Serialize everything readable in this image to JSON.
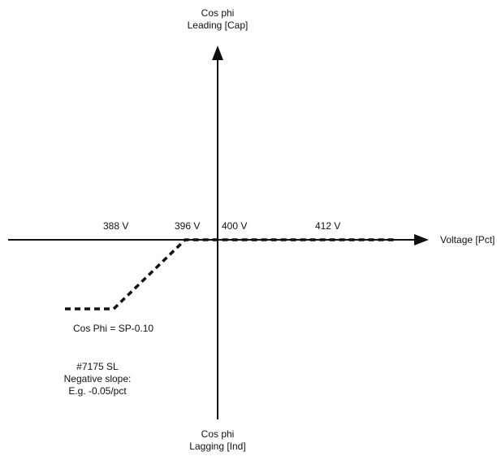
{
  "axes": {
    "y_top_label_line1": "Cos phi",
    "y_top_label_line2": "Leading [Cap]",
    "y_bottom_label_line1": "Cos phi",
    "y_bottom_label_line2": "Lagging [Ind]",
    "x_label": "Voltage [Pct]"
  },
  "ticks": {
    "v388": "388 V",
    "v396": "396 V",
    "v400": "400 V",
    "v412": "412 V"
  },
  "annotations": {
    "cos_phi_value": "Cos Phi = SP-0.10",
    "note_line1": "#7175 SL",
    "note_line2": "Negative slope:",
    "note_line3": "E.g. -0.05/pct"
  },
  "colors": {
    "line": "#111111",
    "background": "#ffffff"
  }
}
